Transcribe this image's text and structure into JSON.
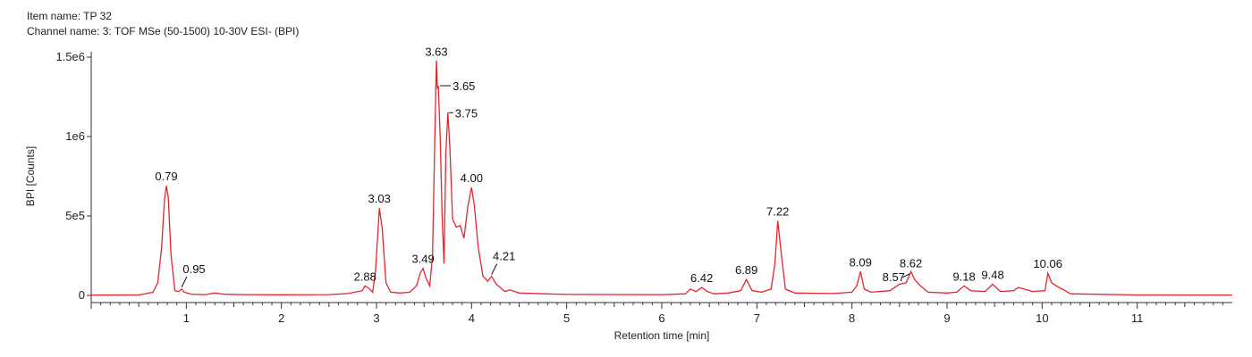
{
  "header": {
    "item_name": "Item name: TP 32",
    "channel_name": "Channel name: 3: TOF MSe (50-1500) 10-30V ESI- (BPI)"
  },
  "colors": {
    "trace": "#e8242b",
    "axis": "#333333"
  },
  "chart_data": {
    "type": "line",
    "title": "",
    "xlabel": "Retention time [min]",
    "ylabel": "BPI [Counts]",
    "xlim": [
      0,
      12
    ],
    "ylim": [
      0,
      1500000
    ],
    "x_ticks": [
      1,
      2,
      3,
      4,
      5,
      6,
      7,
      8,
      9,
      10,
      11
    ],
    "y_ticks": [
      {
        "value": 0,
        "label": "0"
      },
      {
        "value": 500000,
        "label": "5e5"
      },
      {
        "value": 1000000,
        "label": "1e6"
      },
      {
        "value": 1500000,
        "label": "1.5e6"
      }
    ],
    "series": [
      {
        "x": [
          0.0,
          0.5,
          0.65,
          0.7,
          0.74,
          0.77,
          0.79,
          0.81,
          0.84,
          0.88,
          0.92,
          0.95,
          0.98,
          1.05,
          1.2,
          1.3,
          1.4,
          1.6,
          2.0,
          2.5,
          2.7,
          2.85,
          2.88,
          2.92,
          2.96,
          2.99,
          3.03,
          3.06,
          3.1,
          3.15,
          3.25,
          3.35,
          3.42,
          3.46,
          3.49,
          3.52,
          3.56,
          3.59,
          3.61,
          3.63,
          3.64,
          3.65,
          3.67,
          3.69,
          3.71,
          3.73,
          3.75,
          3.77,
          3.8,
          3.84,
          3.88,
          3.92,
          3.96,
          4.0,
          4.03,
          4.07,
          4.12,
          4.17,
          4.21,
          4.26,
          4.35,
          4.4,
          4.5,
          5.0,
          6.0,
          6.25,
          6.3,
          6.36,
          6.42,
          6.48,
          6.55,
          6.7,
          6.83,
          6.89,
          6.95,
          7.05,
          7.15,
          7.19,
          7.22,
          7.25,
          7.3,
          7.4,
          7.8,
          8.0,
          8.05,
          8.09,
          8.13,
          8.2,
          8.4,
          8.5,
          8.57,
          8.62,
          8.66,
          8.72,
          8.8,
          9.0,
          9.1,
          9.18,
          9.25,
          9.4,
          9.48,
          9.56,
          9.7,
          9.75,
          9.9,
          10.03,
          10.06,
          10.1,
          10.15,
          10.3,
          11.0,
          12.0
        ],
        "y": [
          2000,
          3000,
          20000,
          80000,
          300000,
          600000,
          690000,
          620000,
          250000,
          30000,
          25000,
          40000,
          20000,
          8000,
          5000,
          15000,
          8000,
          5000,
          4000,
          5000,
          12000,
          30000,
          60000,
          45000,
          20000,
          150000,
          550000,
          420000,
          80000,
          20000,
          15000,
          20000,
          60000,
          140000,
          170000,
          110000,
          60000,
          250000,
          900000,
          1480000,
          1300000,
          1320000,
          1000000,
          500000,
          200000,
          900000,
          1150000,
          950000,
          480000,
          430000,
          440000,
          360000,
          560000,
          680000,
          560000,
          300000,
          120000,
          90000,
          120000,
          70000,
          25000,
          35000,
          15000,
          6000,
          5000,
          10000,
          40000,
          25000,
          50000,
          25000,
          10000,
          15000,
          30000,
          100000,
          30000,
          20000,
          40000,
          200000,
          470000,
          300000,
          40000,
          15000,
          12000,
          20000,
          60000,
          150000,
          40000,
          20000,
          30000,
          70000,
          80000,
          150000,
          100000,
          60000,
          20000,
          15000,
          20000,
          60000,
          30000,
          25000,
          70000,
          25000,
          30000,
          50000,
          25000,
          30000,
          140000,
          80000,
          60000,
          10000,
          3000,
          2000
        ]
      }
    ],
    "peak_labels": [
      {
        "text": "0.79",
        "x": 0.79,
        "y": 690000
      },
      {
        "text": "0.95",
        "x": 0.95,
        "y": 40000
      },
      {
        "text": "2.88",
        "x": 2.88,
        "y": 60000
      },
      {
        "text": "3.03",
        "x": 3.03,
        "y": 550000
      },
      {
        "text": "3.49",
        "x": 3.49,
        "y": 170000
      },
      {
        "text": "3.63",
        "x": 3.63,
        "y": 1480000
      },
      {
        "text": "3.65",
        "x": 3.65,
        "y": 1320000
      },
      {
        "text": "3.75",
        "x": 3.75,
        "y": 1150000
      },
      {
        "text": "4.00",
        "x": 4.0,
        "y": 680000
      },
      {
        "text": "4.21",
        "x": 4.21,
        "y": 120000
      },
      {
        "text": "6.42",
        "x": 6.42,
        "y": 50000
      },
      {
        "text": "6.89",
        "x": 6.89,
        "y": 100000
      },
      {
        "text": "7.22",
        "x": 7.22,
        "y": 470000
      },
      {
        "text": "8.09",
        "x": 8.09,
        "y": 150000
      },
      {
        "text": "8.57",
        "x": 8.57,
        "y": 80000
      },
      {
        "text": "8.62",
        "x": 8.62,
        "y": 150000
      },
      {
        "text": "9.18",
        "x": 9.18,
        "y": 60000
      },
      {
        "text": "9.48",
        "x": 9.48,
        "y": 70000
      },
      {
        "text": "10.06",
        "x": 10.06,
        "y": 140000
      }
    ],
    "grid": false,
    "legend": "none"
  }
}
